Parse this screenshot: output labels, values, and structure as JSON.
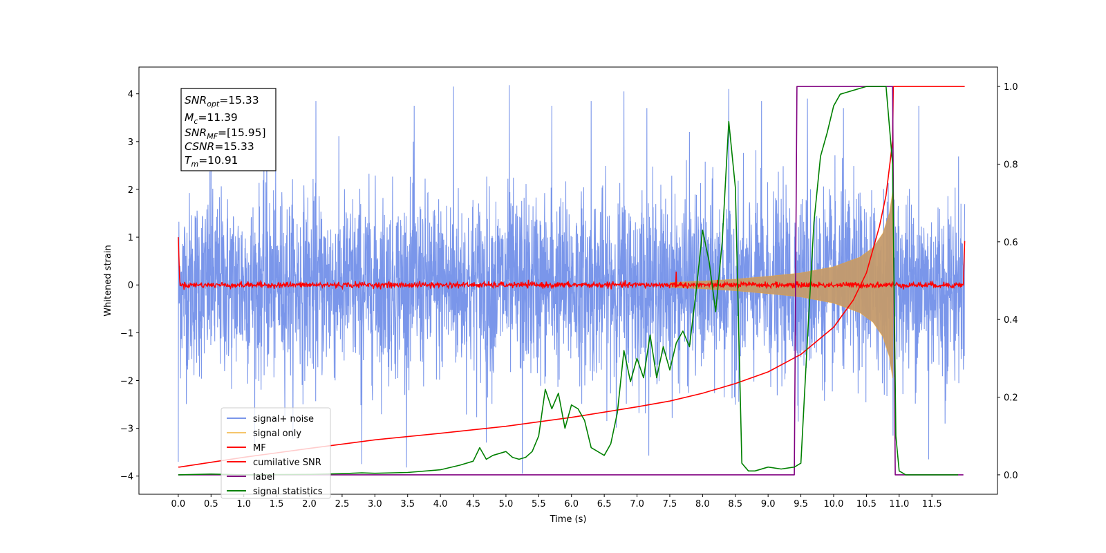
{
  "chart_data": {
    "type": "line",
    "xlabel": "Time (s)",
    "ylabel": "Whitened strain",
    "xlim": [
      -0.6,
      12.5
    ],
    "ylim": [
      -4.38,
      4.56
    ],
    "y2lim": [
      -0.05,
      1.05
    ],
    "grid": false,
    "legend_position": "lower-left",
    "x_ticks": [
      "0.0",
      "0.5",
      "1.0",
      "1.5",
      "2.0",
      "2.5",
      "3.0",
      "3.5",
      "4.0",
      "4.5",
      "5.0",
      "5.5",
      "6.0",
      "6.5",
      "7.0",
      "7.5",
      "8.0",
      "8.5",
      "9.0",
      "9.5",
      "10.0",
      "10.5",
      "11.0",
      "11.5"
    ],
    "y_ticks": [
      "4",
      "3",
      "2",
      "1",
      "0",
      "−1",
      "−2",
      "−3",
      "−4"
    ],
    "y2_ticks": [
      "1.0",
      "0.8",
      "0.6",
      "0.4",
      "0.2",
      "0.0"
    ],
    "annotation": {
      "snr_opt": {
        "base": "SNR",
        "sub": "opt",
        "value": "=15.33"
      },
      "mc": {
        "base": "M",
        "sub": "c",
        "value": "=11.39"
      },
      "snr_mf": {
        "base": "SNR",
        "sub": "MF",
        "value": "=[15.95]"
      },
      "csnr": {
        "base": "CSNR",
        "value": "=15.33"
      },
      "tm": {
        "base": "T",
        "sub": "m",
        "value": "=10.91"
      }
    },
    "series": [
      {
        "name": "signal+ noise",
        "axis": "left",
        "color": "#4169e1",
        "opacity": 0.7,
        "description_values": {
          "t_start": 0.0,
          "t_end": 12.0,
          "noise_sigma": 0.95,
          "min": -3.95,
          "max": 4.2
        },
        "spikes": [
          [
            0.0,
            -3.7
          ],
          [
            0.5,
            3.7
          ],
          [
            1.35,
            3.9
          ],
          [
            2.1,
            3.85
          ],
          [
            2.8,
            -3.75
          ],
          [
            3.6,
            3.75
          ],
          [
            4.2,
            4.15
          ],
          [
            4.7,
            -3.3
          ],
          [
            5.05,
            4.18
          ],
          [
            5.25,
            -3.95
          ],
          [
            5.7,
            3.75
          ],
          [
            6.3,
            3.85
          ],
          [
            6.8,
            4.05
          ],
          [
            7.15,
            3.7
          ],
          [
            7.8,
            3.2
          ],
          [
            8.4,
            4.1
          ],
          [
            8.9,
            3.85
          ],
          [
            9.6,
            3.9
          ],
          [
            10.15,
            3.7
          ],
          [
            10.9,
            3.45
          ],
          [
            11.3,
            3.75
          ],
          [
            11.45,
            -3.65
          ],
          [
            11.7,
            -2.9
          ]
        ]
      },
      {
        "name": "signal only",
        "axis": "left",
        "color": "#f5a623",
        "opacity": 0.5,
        "envelope": [
          [
            7.5,
            0.05
          ],
          [
            8.0,
            0.08
          ],
          [
            8.5,
            0.12
          ],
          [
            9.0,
            0.18
          ],
          [
            9.5,
            0.25
          ],
          [
            10.0,
            0.38
          ],
          [
            10.4,
            0.58
          ],
          [
            10.6,
            0.78
          ],
          [
            10.75,
            1.08
          ],
          [
            10.85,
            1.5
          ],
          [
            10.9,
            1.95
          ],
          [
            10.91,
            0.0
          ]
        ]
      },
      {
        "name": "MF",
        "axis": "left",
        "color": "#ff0000",
        "baseline": 0.0,
        "ripple": 0.05,
        "edges": [
          [
            0.0,
            1.0
          ],
          [
            0.02,
            0.15
          ],
          [
            11.98,
            0.0
          ],
          [
            12.0,
            0.92
          ]
        ]
      },
      {
        "name": "cumilative SNR",
        "axis": "right",
        "color": "#ff0000",
        "x": [
          0.0,
          0.02,
          1.0,
          2.0,
          3.0,
          4.0,
          5.0,
          6.0,
          7.0,
          7.5,
          8.0,
          8.5,
          9.0,
          9.5,
          10.0,
          10.3,
          10.5,
          10.7,
          10.8,
          10.85,
          10.9,
          10.91,
          11.0,
          12.0
        ],
        "y": [
          0.02,
          0.02,
          0.045,
          0.068,
          0.09,
          0.107,
          0.125,
          0.148,
          0.175,
          0.19,
          0.21,
          0.235,
          0.265,
          0.31,
          0.38,
          0.45,
          0.52,
          0.64,
          0.72,
          0.79,
          0.86,
          1.0,
          1.0,
          1.0
        ]
      },
      {
        "name": "label",
        "axis": "right",
        "color": "#800080",
        "x": [
          0.0,
          9.4,
          9.44,
          10.9,
          10.94,
          11.98
        ],
        "y": [
          0.0,
          0.0,
          1.0,
          1.0,
          0.0,
          0.0
        ]
      },
      {
        "name": "signal statistics",
        "axis": "right",
        "color": "#008000",
        "x": [
          0.0,
          0.5,
          1.0,
          2.0,
          2.5,
          2.8,
          3.0,
          3.5,
          4.0,
          4.3,
          4.5,
          4.6,
          4.7,
          4.8,
          5.0,
          5.1,
          5.2,
          5.3,
          5.4,
          5.5,
          5.6,
          5.7,
          5.8,
          5.9,
          6.0,
          6.1,
          6.2,
          6.3,
          6.4,
          6.5,
          6.6,
          6.7,
          6.8,
          6.9,
          7.0,
          7.1,
          7.2,
          7.3,
          7.4,
          7.5,
          7.6,
          7.7,
          7.8,
          7.9,
          8.0,
          8.1,
          8.2,
          8.3,
          8.4,
          8.5,
          8.6,
          8.7,
          8.8,
          9.0,
          9.2,
          9.4,
          9.5,
          9.6,
          9.7,
          9.8,
          9.9,
          10.0,
          10.1,
          10.2,
          10.3,
          10.4,
          10.5,
          10.6,
          10.7,
          10.8,
          10.9,
          10.95,
          11.0,
          11.1,
          11.9
        ],
        "y": [
          0.0,
          0.002,
          0.0,
          0.001,
          0.003,
          0.005,
          0.004,
          0.006,
          0.013,
          0.025,
          0.035,
          0.07,
          0.04,
          0.05,
          0.06,
          0.045,
          0.04,
          0.045,
          0.06,
          0.1,
          0.22,
          0.17,
          0.21,
          0.12,
          0.18,
          0.17,
          0.14,
          0.07,
          0.06,
          0.05,
          0.08,
          0.16,
          0.32,
          0.24,
          0.3,
          0.25,
          0.36,
          0.25,
          0.33,
          0.27,
          0.34,
          0.37,
          0.33,
          0.47,
          0.63,
          0.55,
          0.42,
          0.6,
          0.91,
          0.74,
          0.03,
          0.01,
          0.01,
          0.02,
          0.015,
          0.02,
          0.03,
          0.35,
          0.65,
          0.82,
          0.88,
          0.95,
          0.98,
          0.985,
          0.99,
          0.995,
          1.0,
          1.0,
          1.0,
          1.0,
          0.8,
          0.1,
          0.01,
          0.0,
          0.0
        ]
      }
    ]
  }
}
